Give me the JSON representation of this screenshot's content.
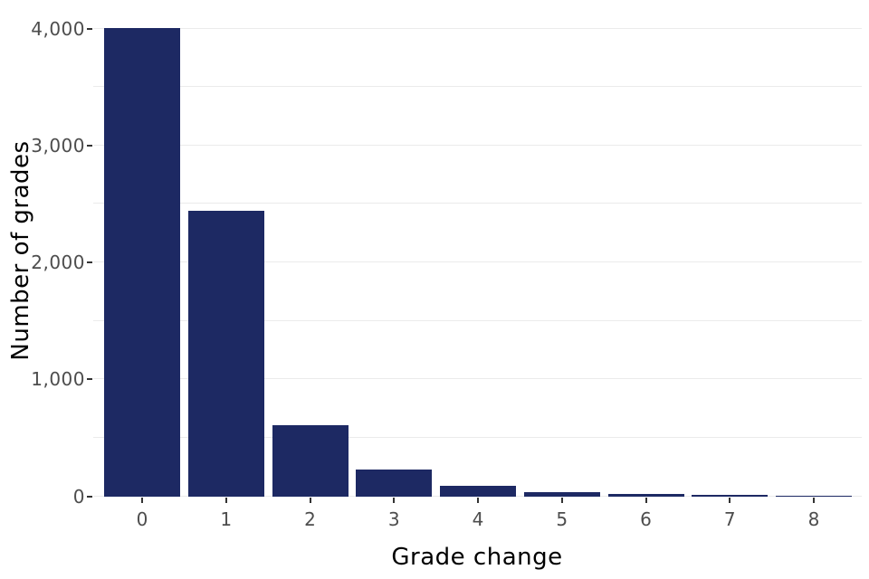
{
  "chart_data": {
    "type": "bar",
    "title": "",
    "xlabel": "Grade change",
    "ylabel": "Number of grades",
    "categories": [
      "0",
      "1",
      "2",
      "3",
      "4",
      "5",
      "6",
      "7",
      "8"
    ],
    "values": [
      4005,
      2440,
      610,
      225,
      90,
      33,
      22,
      10,
      3
    ],
    "ylim": [
      0,
      4200
    ],
    "y_major_ticks": [
      {
        "value": 0,
        "label": "0"
      },
      {
        "value": 1000,
        "label": "1,000"
      },
      {
        "value": 2000,
        "label": "2,000"
      },
      {
        "value": 3000,
        "label": "3,000"
      },
      {
        "value": 4000,
        "label": "4,000"
      }
    ],
    "y_minor_ticks": [
      500,
      1500,
      2500,
      3500
    ],
    "grid": "horizontal major and minor gridlines on white background",
    "legend": "none",
    "colors": {
      "bar": "#1d2963",
      "gridline": "#ebebeb",
      "tick_text": "#4d4d4d",
      "axis_title": "#000000",
      "tick_mark": "#333333",
      "background": "#ffffff"
    }
  }
}
